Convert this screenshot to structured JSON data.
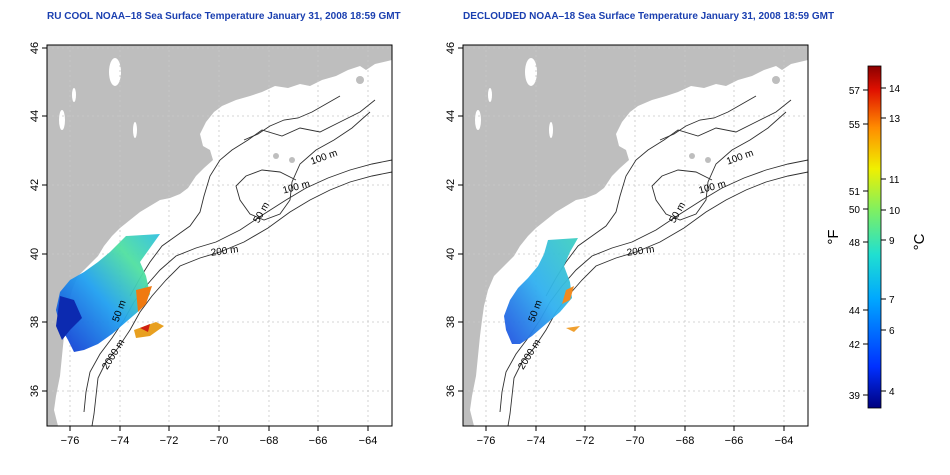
{
  "panels": [
    {
      "title": "RU COOL NOAA–18 Sea Surface Temperature January 31, 2008 18:59 GMT",
      "contour_labels": [
        "100 m",
        "100 m",
        "50 m",
        "200 m",
        "50 m",
        "2000 m"
      ]
    },
    {
      "title": "DECLOUDED NOAA–18 Sea Surface Temperature January 31, 2008 18:59 GMT",
      "contour_labels": [
        "100 m",
        "100 m",
        "50 m",
        "200 m",
        "50 m",
        "2000 m"
      ]
    }
  ],
  "axes": {
    "x_ticks": [
      "−76",
      "−74",
      "−72",
      "−70",
      "−68",
      "−66",
      "−64"
    ],
    "y_ticks": [
      "46",
      "44",
      "42",
      "40",
      "38",
      "36"
    ]
  },
  "colorbar": {
    "fahrenheit_ticks": [
      "57",
      "55",
      "51",
      "50",
      "48",
      "44",
      "42",
      "39"
    ],
    "celsius_ticks": [
      "14",
      "13",
      "11",
      "10",
      "9",
      "7",
      "6",
      "4"
    ],
    "fahrenheit_label": "°F",
    "celsius_label": "°C"
  },
  "colors": {
    "title": "#1a3fb0",
    "land": "#bebebe",
    "sst_scale": [
      "#00007f",
      "#0044ff",
      "#00b4ff",
      "#3fe0b0",
      "#a0f050",
      "#ffe000",
      "#ff8000",
      "#e00000",
      "#8b0000"
    ]
  }
}
